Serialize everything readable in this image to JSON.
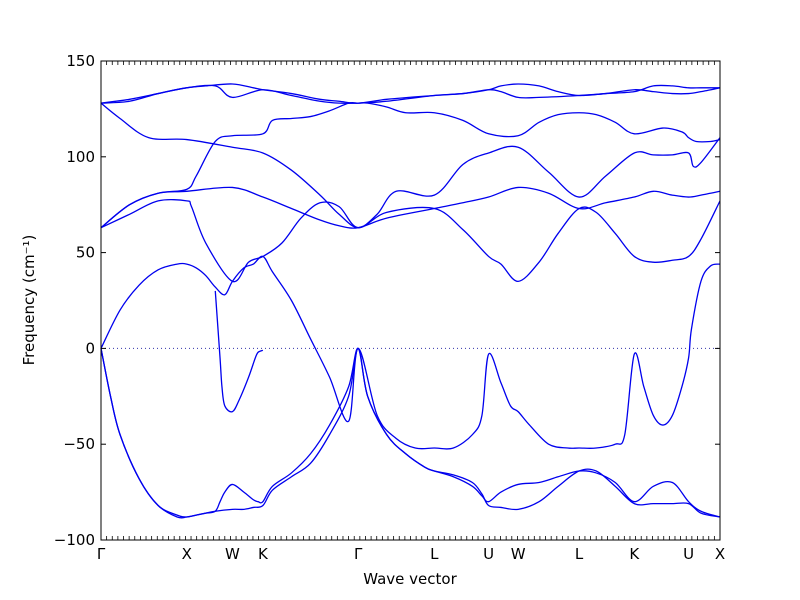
{
  "chart_data": {
    "type": "line",
    "title": "",
    "xlabel": "Wave vector",
    "ylabel": "Frequency (cm⁻¹)",
    "ylim": [
      -100,
      150
    ],
    "yticks": [
      -100,
      -50,
      0,
      50,
      100,
      150
    ],
    "ytick_labels": [
      "−100",
      "−50",
      "0",
      "50",
      "100",
      "150"
    ],
    "xlim": [
      0,
      6.5
    ],
    "xticks": [
      {
        "label": "Γ",
        "x": 0
      },
      {
        "label": "X",
        "x": 0.9
      },
      {
        "label": "W",
        "x": 1.38
      },
      {
        "label": "K",
        "x": 1.7
      },
      {
        "label": "Γ",
        "x": 2.7
      },
      {
        "label": "L",
        "x": 3.5
      },
      {
        "label": "U",
        "x": 4.07
      },
      {
        "label": "W",
        "x": 4.38
      },
      {
        "label": "L",
        "x": 5.02
      },
      {
        "label": "K",
        "x": 5.6
      },
      {
        "label": "U",
        "x": 6.17
      },
      {
        "label": "X",
        "x": 6.5
      }
    ],
    "zero_line": true,
    "line_color": "#0000ee",
    "series": [
      {
        "x": [
          0,
          0.3,
          0.6,
          0.9,
          1.2,
          1.38,
          1.7,
          2.0,
          2.3,
          2.5,
          2.7,
          3.0,
          3.5,
          3.8,
          4.07,
          4.2,
          4.38,
          4.6,
          5.02,
          5.3,
          5.6,
          5.8,
          6.0,
          6.17,
          6.3,
          6.5
        ],
        "y": [
          128,
          130,
          133,
          136,
          137,
          131,
          135,
          132,
          129,
          128,
          128,
          129,
          132,
          133,
          135,
          134,
          131,
          131,
          132,
          133,
          135,
          134,
          133,
          133,
          134,
          136
        ]
      },
      {
        "x": [
          0,
          0.3,
          0.6,
          0.9,
          1.1,
          1.38,
          1.6,
          1.7,
          2.0,
          2.3,
          2.5,
          2.7,
          3.0,
          3.5,
          3.8,
          4.07,
          4.2,
          4.38,
          4.6,
          4.8,
          5.02,
          5.3,
          5.6,
          5.8,
          6.0,
          6.17,
          6.3,
          6.5
        ],
        "y": [
          128,
          129,
          133,
          136,
          137,
          138,
          136,
          135,
          133,
          130,
          129,
          128,
          130,
          132,
          133,
          135,
          137,
          138,
          137,
          134,
          132,
          133,
          134,
          137,
          137,
          136,
          136,
          136
        ]
      },
      {
        "x": [
          0,
          0.2,
          0.5,
          0.9,
          1.38,
          1.7,
          2.0,
          2.3,
          2.5,
          2.7,
          2.9,
          3.1,
          3.5,
          3.8,
          4.07,
          4.38,
          4.7,
          5.02,
          5.3,
          5.6,
          5.8,
          6.0,
          6.17,
          6.22,
          6.3,
          6.5
        ],
        "y": [
          128,
          120,
          110,
          109,
          105,
          102,
          93,
          80,
          70,
          63,
          70,
          82,
          80,
          96,
          102,
          105,
          92,
          79,
          90,
          102,
          101,
          101,
          102,
          95,
          97,
          110
        ]
      },
      {
        "x": [
          0,
          0.3,
          0.6,
          0.9,
          1.0,
          1.2,
          1.38,
          1.7,
          1.8,
          2.0,
          2.2,
          2.4,
          2.6,
          2.7,
          2.8,
          3.0,
          3.2,
          3.5,
          3.8,
          4.07,
          4.38,
          4.6,
          4.8,
          5.02,
          5.2,
          5.4,
          5.6,
          5.9,
          6.1,
          6.17,
          6.25,
          6.4,
          6.5
        ],
        "y": [
          63,
          75,
          81,
          83,
          90,
          108,
          111,
          112,
          119,
          120,
          121,
          124,
          128,
          128,
          128,
          126,
          123,
          123,
          119,
          112,
          111,
          118,
          122,
          123,
          122,
          118,
          112,
          115,
          113,
          110,
          108,
          108,
          109
        ]
      },
      {
        "x": [
          0,
          0.3,
          0.6,
          0.9,
          1.38,
          1.7,
          2.0,
          2.3,
          2.5,
          2.7,
          3.0,
          3.5,
          3.8,
          4.07,
          4.38,
          4.7,
          5.02,
          5.3,
          5.6,
          5.8,
          6.0,
          6.17,
          6.3,
          6.5
        ],
        "y": [
          63,
          75,
          81,
          82,
          84,
          79,
          73,
          67,
          64,
          63,
          68,
          73,
          76,
          79,
          84,
          81,
          73,
          76,
          79,
          82,
          80,
          79,
          80,
          82
        ]
      },
      {
        "x": [
          0,
          0.3,
          0.6,
          0.9,
          0.95,
          1.1,
          1.38,
          1.55,
          1.7,
          1.9,
          2.1,
          2.3,
          2.5,
          2.7,
          3.0,
          3.5,
          3.8,
          4.07,
          4.2,
          4.38,
          4.6,
          4.8,
          5.02,
          5.2,
          5.4,
          5.6,
          5.8,
          6.0,
          6.17,
          6.3,
          6.5
        ],
        "y": [
          63,
          70,
          77,
          77,
          74,
          55,
          35,
          45,
          48,
          55,
          68,
          76,
          74,
          63,
          71,
          73,
          62,
          48,
          44,
          35,
          45,
          60,
          73,
          71,
          60,
          48,
          45,
          46,
          48,
          57,
          77
        ]
      },
      {
        "x": [
          0,
          0.2,
          0.4,
          0.6,
          0.8,
          0.9,
          1.0,
          1.1,
          1.2,
          1.3,
          1.38,
          1.5,
          1.6,
          1.7,
          1.8,
          2.0,
          2.2,
          2.4,
          2.6,
          2.7,
          2.9,
          3.1,
          3.3,
          3.5,
          3.7,
          3.9,
          4.0,
          4.07,
          4.2,
          4.3,
          4.38,
          4.5,
          4.7,
          4.9,
          5.02,
          5.2,
          5.4,
          5.5,
          5.6,
          5.7,
          5.8,
          5.9,
          6.0,
          6.1,
          6.17,
          6.2,
          6.3,
          6.4,
          6.5
        ],
        "y": [
          0,
          20,
          33,
          41,
          44,
          44,
          42,
          38,
          32,
          28,
          35,
          42,
          44,
          48,
          40,
          25,
          5,
          -15,
          -38,
          0,
          -35,
          -47,
          -52,
          -52,
          -52,
          -45,
          -35,
          -3,
          -18,
          -30,
          -33,
          -40,
          -50,
          -52,
          -52,
          -52,
          -50,
          -45,
          -3,
          -20,
          -35,
          -40,
          -35,
          -20,
          -5,
          10,
          35,
          43,
          44
        ]
      },
      {
        "x": [
          0,
          0.1,
          0.2,
          0.4,
          0.6,
          0.8,
          0.9,
          1.0,
          1.1,
          1.2,
          1.25,
          1.3,
          1.38,
          1.5,
          1.6,
          1.65,
          1.7,
          1.8,
          2.0,
          2.2,
          2.4,
          2.6,
          2.7,
          2.8,
          3.0,
          3.2,
          3.4,
          3.5,
          3.7,
          3.9,
          4.0,
          4.07,
          4.2,
          4.38,
          4.6,
          4.8,
          5.02,
          5.2,
          5.4,
          5.6,
          5.8,
          6.0,
          6.17,
          6.3,
          6.5
        ],
        "y": [
          0,
          -25,
          -45,
          -68,
          -82,
          -88,
          -88,
          -87,
          -86,
          -85,
          -80,
          -75,
          -71,
          -75,
          -79,
          -80,
          -80,
          -72,
          -65,
          -55,
          -40,
          -20,
          0,
          -25,
          -45,
          -55,
          -62,
          -64,
          -67,
          -72,
          -77,
          -80,
          -75,
          -71,
          -70,
          -67,
          -64,
          -65,
          -70,
          -80,
          -72,
          -70,
          -80,
          -85,
          -88
        ]
      },
      {
        "x": [
          0,
          0.1,
          0.2,
          0.4,
          0.6,
          0.8,
          0.9,
          1.0,
          1.2,
          1.38,
          1.5,
          1.6,
          1.7,
          1.8,
          2.0,
          2.2,
          2.4,
          2.6,
          2.7,
          2.8,
          3.0,
          3.2,
          3.4,
          3.5,
          3.7,
          3.9,
          4.0,
          4.07,
          4.2,
          4.38,
          4.6,
          4.8,
          5.02,
          5.2,
          5.4,
          5.6,
          5.8,
          6.0,
          6.17,
          6.3,
          6.5
        ],
        "y": [
          0,
          -25,
          -45,
          -68,
          -82,
          -87,
          -88,
          -87,
          -85,
          -84,
          -84,
          -83,
          -82,
          -74,
          -67,
          -60,
          -45,
          -25,
          0,
          -25,
          -45,
          -55,
          -62,
          -64,
          -66,
          -70,
          -76,
          -82,
          -83,
          -84,
          -80,
          -72,
          -64,
          -64,
          -72,
          -81,
          -81,
          -81,
          -81,
          -86,
          -88
        ]
      },
      {
        "x": [
          1.2,
          1.25,
          1.27,
          1.3,
          1.38,
          1.45,
          1.55,
          1.62,
          1.65,
          1.7
        ],
        "y": [
          30,
          -5,
          -20,
          -30,
          -33,
          -27,
          -15,
          -5,
          -2,
          -1
        ]
      }
    ]
  }
}
